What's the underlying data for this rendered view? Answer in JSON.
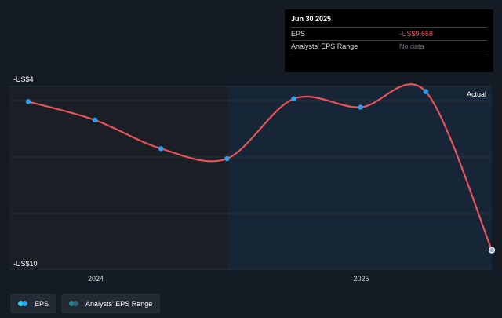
{
  "tooltip": {
    "title": "Jun 30 2025",
    "rows": [
      {
        "label": "EPS",
        "value": "-US$9.658"
      },
      {
        "label": "Analysts' EPS Range",
        "value": "No data"
      }
    ]
  },
  "actual_label": "Actual",
  "legend": [
    {
      "label": "EPS",
      "color": "#2f9ff0"
    },
    {
      "label": "Analysts' EPS Range",
      "color": "#2b7a84"
    }
  ],
  "colors": {
    "line": "#e8525a",
    "point": "#2f9ff0",
    "background": "#151b24",
    "past_shade": "#1a1f26",
    "forecast_shade": "#162637"
  },
  "chart_data": {
    "type": "line",
    "y_tick_labels": [
      "-US$4",
      "-US$10"
    ],
    "x_tick_labels": [
      "2024",
      "2025"
    ],
    "ylim": [
      -10,
      -4
    ],
    "grid": true,
    "series": [
      {
        "name": "EPS",
        "x": [
          "2023-09-30",
          "2023-12-31",
          "2024-03-31",
          "2024-06-30",
          "2024-09-30",
          "2024-12-31",
          "2025-03-31",
          "2025-06-30"
        ],
        "values": [
          -4.45,
          -5.1,
          -6.1,
          -6.45,
          -4.35,
          -4.65,
          -4.1,
          -9.658
        ]
      }
    ]
  }
}
